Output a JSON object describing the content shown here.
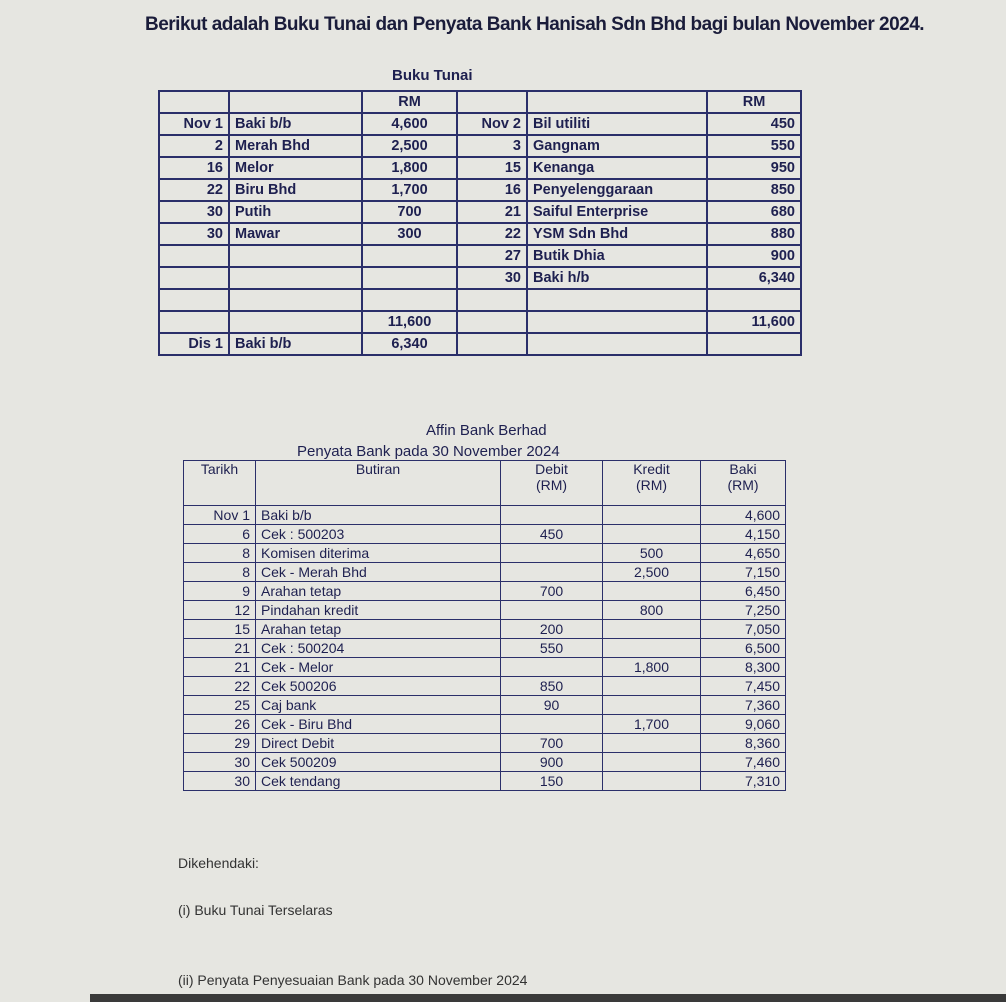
{
  "title": "Berikut adalah Buku Tunai dan Penyata Bank Hanisah Sdn Bhd bagi bulan November 2024.",
  "cash_book": {
    "caption": "Buku Tunai",
    "currency_header": "RM",
    "debit_rows": [
      {
        "date": "Nov 1",
        "particulars": "Baki b/b",
        "amount": "4,600"
      },
      {
        "date": "2",
        "particulars": "Merah Bhd",
        "amount": "2,500"
      },
      {
        "date": "16",
        "particulars": "Melor",
        "amount": "1,800"
      },
      {
        "date": "22",
        "particulars": "Biru Bhd",
        "amount": "1,700"
      },
      {
        "date": "30",
        "particulars": "Putih",
        "amount": "700"
      },
      {
        "date": "30",
        "particulars": "Mawar",
        "amount": "300"
      },
      {
        "date": "",
        "particulars": "",
        "amount": ""
      },
      {
        "date": "",
        "particulars": "",
        "amount": ""
      },
      {
        "date": "",
        "particulars": "",
        "amount": ""
      }
    ],
    "credit_rows": [
      {
        "date": "Nov 2",
        "particulars": "Bil utiliti",
        "amount": "450"
      },
      {
        "date": "3",
        "particulars": "Gangnam",
        "amount": "550"
      },
      {
        "date": "15",
        "particulars": "Kenanga",
        "amount": "950"
      },
      {
        "date": "16",
        "particulars": "Penyelenggaraan",
        "amount": "850"
      },
      {
        "date": "21",
        "particulars": "Saiful Enterprise",
        "amount": "680"
      },
      {
        "date": "22",
        "particulars": "YSM Sdn Bhd",
        "amount": "880"
      },
      {
        "date": "27",
        "particulars": "Butik Dhia",
        "amount": "900"
      },
      {
        "date": "30",
        "particulars": "Baki h/b",
        "amount": "6,340"
      },
      {
        "date": "",
        "particulars": "",
        "amount": ""
      }
    ],
    "debit_total": "11,600",
    "credit_total": "11,600",
    "carried": {
      "date": "Dis 1",
      "particulars": "Baki b/b",
      "amount": "6,340"
    }
  },
  "bank_statement": {
    "bank_name": "Affin Bank Berhad",
    "caption": "Penyata Bank pada 30 November 2024",
    "headers": {
      "date": "Tarikh",
      "details": "Butiran",
      "debit": "Debit",
      "debit_unit": "(RM)",
      "credit": "Kredit",
      "credit_unit": "(RM)",
      "balance": "Baki",
      "balance_unit": "(RM)"
    },
    "rows": [
      {
        "date": "Nov 1",
        "details": "Baki b/b",
        "debit": "",
        "credit": "",
        "balance": "4,600"
      },
      {
        "date": "6",
        "details": "Cek : 500203",
        "debit": "450",
        "credit": "",
        "balance": "4,150"
      },
      {
        "date": "8",
        "details": "Komisen diterima",
        "debit": "",
        "credit": "500",
        "balance": "4,650"
      },
      {
        "date": "8",
        "details": "Cek - Merah Bhd",
        "debit": "",
        "credit": "2,500",
        "balance": "7,150"
      },
      {
        "date": "9",
        "details": "Arahan tetap",
        "debit": "700",
        "credit": "",
        "balance": "6,450"
      },
      {
        "date": "12",
        "details": "Pindahan kredit",
        "debit": "",
        "credit": "800",
        "balance": "7,250"
      },
      {
        "date": "15",
        "details": "Arahan tetap",
        "debit": "200",
        "credit": "",
        "balance": "7,050"
      },
      {
        "date": "21",
        "details": "Cek : 500204",
        "debit": "550",
        "credit": "",
        "balance": "6,500"
      },
      {
        "date": "21",
        "details": "Cek - Melor",
        "debit": "",
        "credit": "1,800",
        "balance": "8,300"
      },
      {
        "date": "22",
        "details": "Cek 500206",
        "debit": "850",
        "credit": "",
        "balance": "7,450"
      },
      {
        "date": "25",
        "details": "Caj bank",
        "debit": "90",
        "credit": "",
        "balance": "7,360"
      },
      {
        "date": "26",
        "details": "Cek - Biru Bhd",
        "debit": "",
        "credit": "1,700",
        "balance": "9,060"
      },
      {
        "date": "29",
        "details": "Direct Debit",
        "debit": "700",
        "credit": "",
        "balance": "8,360"
      },
      {
        "date": "30",
        "details": "Cek 500209",
        "debit": "900",
        "credit": "",
        "balance": "7,460"
      },
      {
        "date": "30",
        "details": "Cek tendang",
        "debit": "150",
        "credit": "",
        "balance": "7,310"
      }
    ]
  },
  "questions": {
    "heading": "Dikehendaki:",
    "items": [
      "(i) Buku Tunai Terselaras",
      "(ii) Penyata Penyesuaian Bank pada 30 November 2024"
    ]
  }
}
